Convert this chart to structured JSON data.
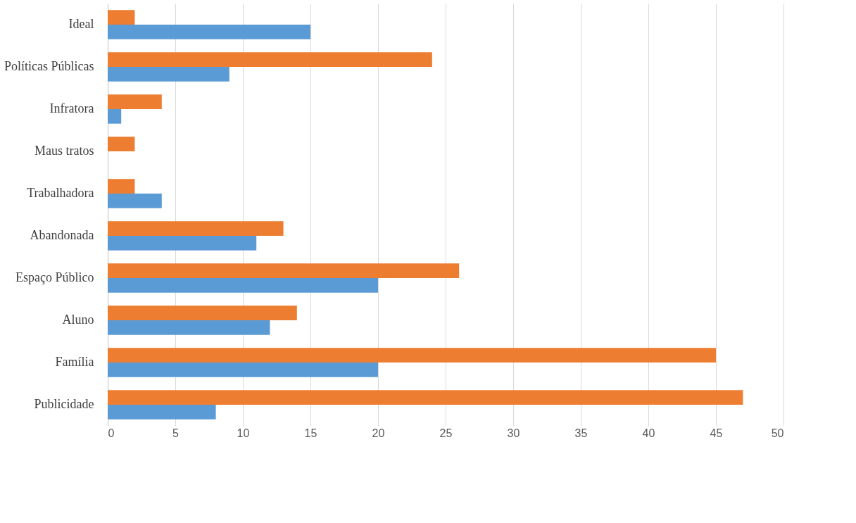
{
  "chart_data": {
    "type": "bar",
    "orientation": "horizontal",
    "categories": [
      "Ideal",
      "Políticas Públicas",
      "Infratora",
      "Maus tratos",
      "Trabalhadora",
      "Abandonada",
      "Espaço Público",
      "Aluno",
      "Família",
      "Publicidade"
    ],
    "series": [
      {
        "color": "#ed7d31",
        "values": [
          2,
          24,
          4,
          2,
          2,
          13,
          26,
          14,
          45,
          47
        ]
      },
      {
        "color": "#5b9bd5",
        "values": [
          15,
          9,
          1,
          0,
          4,
          11,
          20,
          12,
          20,
          8
        ]
      }
    ],
    "xlim": [
      0,
      50
    ],
    "xticks": [
      0,
      5,
      10,
      15,
      20,
      25,
      30,
      35,
      40,
      45,
      50
    ],
    "grid": "x",
    "legend": false
  }
}
